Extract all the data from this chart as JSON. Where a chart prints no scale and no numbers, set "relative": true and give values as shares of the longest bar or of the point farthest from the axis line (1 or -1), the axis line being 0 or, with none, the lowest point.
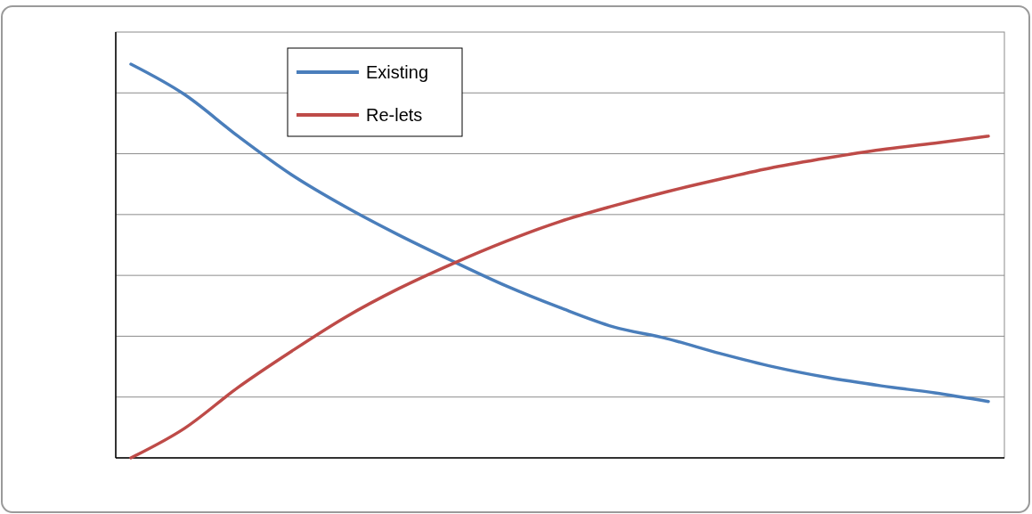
{
  "chart_data": {
    "type": "line",
    "relative": true,
    "grid": "y",
    "legend": "top left",
    "marker": "none",
    "line_style": "solid",
    "categories": [
      null,
      null,
      null,
      null,
      null,
      null,
      null,
      null,
      null,
      null,
      null,
      null,
      null,
      null,
      null,
      null,
      null
    ],
    "series": [
      {
        "name": "Existing",
        "color": "#4a7ebb",
        "values": [
          1,
          0.923,
          0.817,
          0.719,
          0.638,
          0.566,
          0.5,
          0.437,
          0.382,
          0.333,
          0.303,
          0.265,
          0.231,
          0.204,
          0.183,
          0.165,
          0.143
        ]
      },
      {
        "name": "Re-lets",
        "color": "#be4b48",
        "values": [
          0,
          0.075,
          0.179,
          0.271,
          0.357,
          0.43,
          0.493,
          0.55,
          0.6,
          0.64,
          0.676,
          0.708,
          0.738,
          0.762,
          0.783,
          0.799,
          0.817
        ]
      }
    ]
  }
}
